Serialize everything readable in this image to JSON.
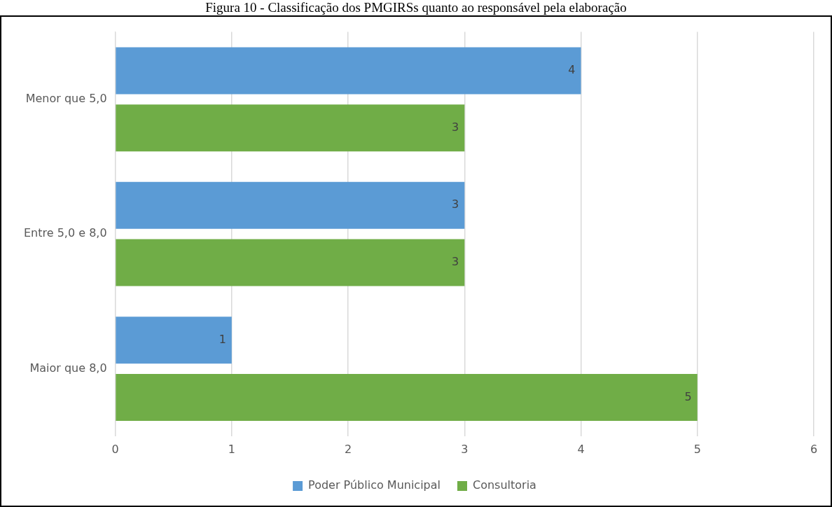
{
  "chart_data": {
    "type": "bar",
    "orientation": "horizontal",
    "title": "Figura 10 - Classificação dos PMGIRSs quanto ao responsável pela elaboração",
    "categories": [
      "Menor que 5,0",
      "Entre 5,0 e 8,0",
      "Maior que 8,0"
    ],
    "series": [
      {
        "name": "Poder Público Municipal",
        "color": "#5b9bd5",
        "values": [
          4,
          3,
          1
        ]
      },
      {
        "name": "Consultoria",
        "color": "#70ad47",
        "values": [
          3,
          3,
          5
        ]
      }
    ],
    "xlim": [
      0,
      6
    ],
    "xticks": [
      0,
      1,
      2,
      3,
      4,
      5,
      6
    ],
    "grid": "x",
    "legend": "bottom",
    "data_labels": true
  }
}
